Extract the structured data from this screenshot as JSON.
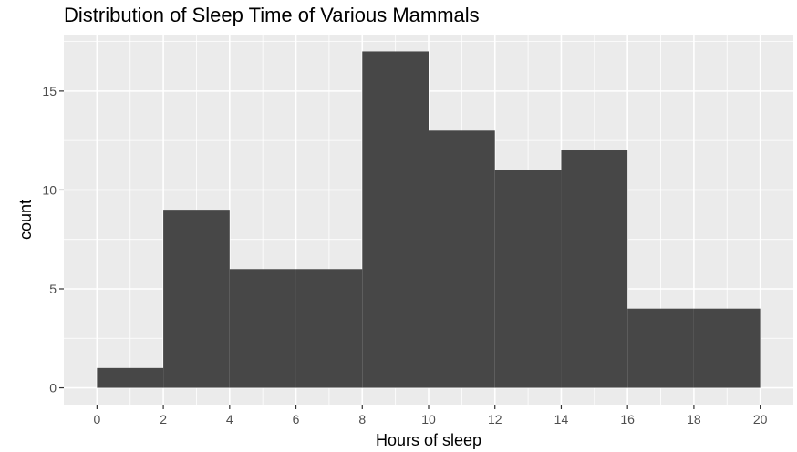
{
  "chart_data": {
    "type": "bar",
    "title": "Distribution of Sleep Time of Various Mammals",
    "xlabel": "Hours of sleep",
    "ylabel": "count",
    "bins": [
      {
        "from": 0,
        "to": 2,
        "count": 1
      },
      {
        "from": 2,
        "to": 4,
        "count": 9
      },
      {
        "from": 4,
        "to": 6,
        "count": 6
      },
      {
        "from": 6,
        "to": 8,
        "count": 6
      },
      {
        "from": 8,
        "to": 10,
        "count": 17
      },
      {
        "from": 10,
        "to": 12,
        "count": 13
      },
      {
        "from": 12,
        "to": 14,
        "count": 11
      },
      {
        "from": 14,
        "to": 16,
        "count": 12
      },
      {
        "from": 16,
        "to": 18,
        "count": 4
      },
      {
        "from": 18,
        "to": 20,
        "count": 4
      }
    ],
    "xticks": [
      0,
      2,
      4,
      6,
      8,
      10,
      12,
      14,
      16,
      18,
      20
    ],
    "yticks": [
      0,
      5,
      10,
      15
    ],
    "xlim": [
      -1,
      21
    ],
    "ylim": [
      -0.85,
      17.85
    ],
    "grid": true,
    "colors": {
      "panel": "#ebebeb",
      "grid": "#ffffff",
      "bar": "#474747",
      "tick": "#333333"
    }
  }
}
